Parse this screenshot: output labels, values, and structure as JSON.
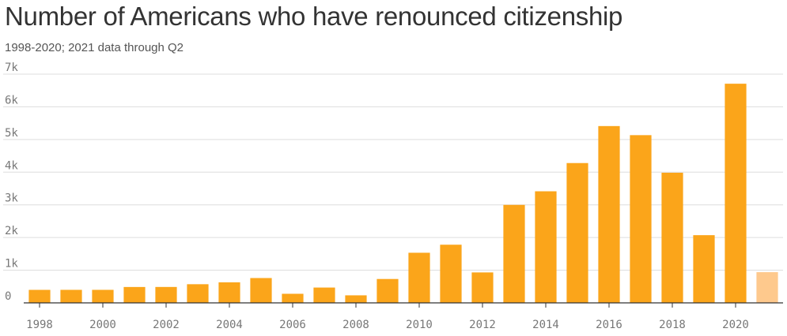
{
  "title": "Number of Americans who have renounced citizenship",
  "subtitle": "1998-2020; 2021 data through Q2",
  "colors": {
    "bar": "#FBA51A",
    "bar_partial": "#FEC98D",
    "grid": "#dddddd",
    "axis": "#333333"
  },
  "chart_data": {
    "type": "bar",
    "title": "Number of Americans who have renounced citizenship",
    "subtitle": "1998-2020; 2021 data through Q2",
    "xlabel": "",
    "ylabel": "",
    "ylim": [
      0,
      7000
    ],
    "grid": true,
    "categories": [
      "1998",
      "1999",
      "2000",
      "2001",
      "2002",
      "2003",
      "2004",
      "2005",
      "2006",
      "2007",
      "2008",
      "2009",
      "2010",
      "2011",
      "2012",
      "2013",
      "2014",
      "2015",
      "2016",
      "2017",
      "2018",
      "2019",
      "2020",
      "2021"
    ],
    "values": [
      398,
      399,
      399,
      486,
      487,
      571,
      629,
      760,
      278,
      469,
      231,
      731,
      1534,
      1780,
      932,
      2999,
      3415,
      4279,
      5411,
      5133,
      3983,
      2072,
      6707,
      940
    ],
    "partial_categories": [
      "2021"
    ],
    "y_ticks": [
      0,
      1000,
      2000,
      3000,
      4000,
      5000,
      6000,
      7000
    ],
    "y_tick_labels": [
      "0",
      "1k",
      "2k",
      "3k",
      "4k",
      "5k",
      "6k",
      "7k"
    ],
    "x_tick_labels": [
      "1998",
      "2000",
      "2002",
      "2004",
      "2006",
      "2008",
      "2010",
      "2012",
      "2014",
      "2016",
      "2018",
      "2020"
    ]
  }
}
